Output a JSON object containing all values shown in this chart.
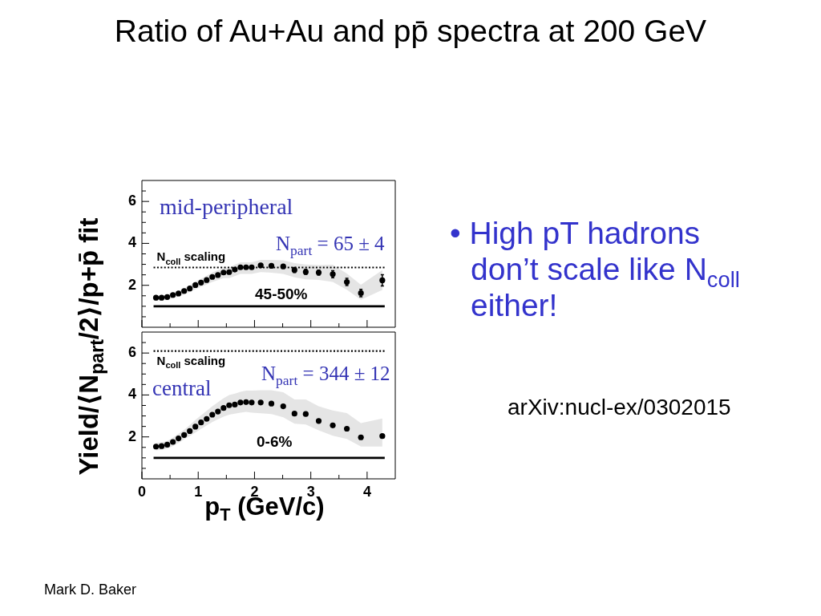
{
  "chart_data": [
    {
      "type": "scatter",
      "title": "Ratio of Au+Au and pp̄ spectra at 200 GeV",
      "x": [
        0.25,
        0.35,
        0.45,
        0.55,
        0.65,
        0.75,
        0.85,
        0.95,
        1.05,
        1.15,
        1.25,
        1.35,
        1.45,
        1.55,
        1.65,
        1.75,
        1.85,
        1.95,
        2.11,
        2.3,
        2.51,
        2.71,
        2.91,
        3.14,
        3.39,
        3.64,
        3.89,
        4.27
      ],
      "series": [
        {
          "color": "#000000",
          "values": [
            1.41,
            1.41,
            1.44,
            1.54,
            1.61,
            1.73,
            1.85,
            2.01,
            2.13,
            2.25,
            2.4,
            2.49,
            2.61,
            2.63,
            2.75,
            2.86,
            2.86,
            2.86,
            2.95,
            2.93,
            2.9,
            2.73,
            2.64,
            2.61,
            2.53,
            2.16,
            1.63,
            2.24
          ],
          "errors": [
            null,
            null,
            null,
            null,
            null,
            null,
            null,
            null,
            null,
            null,
            null,
            null,
            null,
            null,
            null,
            null,
            null,
            null,
            null,
            null,
            null,
            0.12,
            0.12,
            0.12,
            0.17,
            0.17,
            0.18,
            0.27
          ],
          "lower": [
            1.29,
            1.29,
            1.31,
            1.39,
            1.46,
            1.56,
            1.68,
            1.81,
            1.93,
            2.04,
            2.16,
            2.25,
            2.34,
            2.34,
            2.44,
            2.54,
            2.54,
            2.54,
            2.63,
            2.6,
            2.54,
            2.38,
            2.29,
            2.26,
            2.16,
            1.79,
            1.31,
            1.78
          ],
          "upper": [
            1.5,
            1.5,
            1.55,
            1.65,
            1.73,
            1.85,
            2.0,
            2.18,
            2.31,
            2.46,
            2.61,
            2.73,
            2.81,
            2.83,
            2.98,
            3.1,
            3.1,
            3.1,
            3.21,
            3.21,
            3.19,
            3.06,
            2.99,
            2.96,
            2.98,
            2.56,
            2.03,
            2.73
          ]
        }
      ],
      "xlim": [
        0,
        4.5
      ],
      "ylim": [
        0,
        7
      ],
      "xticks": [
        0,
        {
          "value": 0.5,
          "label": null
        },
        1,
        {
          "value": 1.5,
          "label": null
        },
        2,
        {
          "value": 2.5,
          "label": null
        },
        3,
        {
          "value": 3.5,
          "label": null
        },
        4
      ],
      "yticks": [
        {
          "value": 0.5,
          "label": null
        },
        {
          "value": 1,
          "label": null
        },
        {
          "value": 1.5,
          "label": null
        },
        2,
        {
          "value": 2.5,
          "label": null
        },
        {
          "value": 3,
          "label": null
        },
        {
          "value": 3.5,
          "label": null
        },
        4,
        {
          "value": 4.5,
          "label": null
        },
        {
          "value": 5,
          "label": null
        },
        {
          "value": 5.5,
          "label": null
        },
        6,
        {
          "value": 6.5,
          "label": null
        }
      ],
      "tick_labels": "y",
      "marker": "circle",
      "ref_lines": [
        {
          "axis": "y",
          "value": 2.85,
          "label": "N$_{coll}$ scaling",
          "line_style": "dotted",
          "color": "#000000"
        },
        {
          "axis": "y",
          "value": 1,
          "line_style": "solid",
          "color": "#000000"
        }
      ],
      "annotations": [
        "mid-peripheral",
        "N$_{part}$ = 65 ± 4",
        "45-50%"
      ]
    },
    {
      "type": "scatter",
      "xlabel": "p$_{T}$ (GeV/c)",
      "ylabel": "Yield/⟨N$_{part}$/2⟩/p+p̄ fit",
      "x": [
        0.25,
        0.35,
        0.45,
        0.55,
        0.65,
        0.75,
        0.85,
        0.95,
        1.05,
        1.15,
        1.25,
        1.35,
        1.45,
        1.55,
        1.65,
        1.75,
        1.85,
        1.95,
        2.11,
        2.3,
        2.51,
        2.71,
        2.91,
        3.14,
        3.39,
        3.64,
        3.89,
        4.27
      ],
      "series": [
        {
          "color": "#000000",
          "values": [
            1.54,
            1.56,
            1.63,
            1.76,
            1.93,
            2.09,
            2.28,
            2.49,
            2.69,
            2.86,
            3.06,
            3.21,
            3.38,
            3.51,
            3.54,
            3.64,
            3.66,
            3.64,
            3.64,
            3.59,
            3.46,
            3.11,
            3.09,
            2.76,
            2.55,
            2.39,
            1.98,
            2.04
          ],
          "lower": [
            1.36,
            1.39,
            1.44,
            1.56,
            1.71,
            1.88,
            2.04,
            2.21,
            2.38,
            2.54,
            2.71,
            2.84,
            2.96,
            3.06,
            3.11,
            3.16,
            3.19,
            3.16,
            3.13,
            3.09,
            2.94,
            2.63,
            2.59,
            2.31,
            2.06,
            1.9,
            1.54,
            1.54
          ],
          "upper": [
            1.71,
            1.74,
            1.81,
            1.96,
            2.15,
            2.34,
            2.56,
            2.81,
            3.03,
            3.24,
            3.46,
            3.65,
            3.84,
            4.0,
            4.06,
            4.15,
            4.21,
            4.21,
            4.23,
            4.23,
            4.13,
            3.79,
            3.79,
            3.46,
            3.26,
            3.14,
            2.66,
            2.88
          ]
        }
      ],
      "xlim": [
        0,
        4.5
      ],
      "ylim": [
        0,
        7
      ],
      "xticks": [
        0,
        {
          "value": 0.5,
          "label": null
        },
        1,
        {
          "value": 1.5,
          "label": null
        },
        2,
        {
          "value": 2.5,
          "label": null
        },
        3,
        {
          "value": 3.5,
          "label": null
        },
        4
      ],
      "yticks": [
        {
          "value": 0.5,
          "label": null
        },
        {
          "value": 1,
          "label": null
        },
        {
          "value": 1.5,
          "label": null
        },
        2,
        {
          "value": 2.5,
          "label": null
        },
        {
          "value": 3,
          "label": null
        },
        {
          "value": 3.5,
          "label": null
        },
        4,
        {
          "value": 4.5,
          "label": null
        },
        {
          "value": 5,
          "label": null
        },
        {
          "value": 5.5,
          "label": null
        },
        6,
        {
          "value": 6.5,
          "label": null
        }
      ],
      "marker": "circle",
      "ref_lines": [
        {
          "axis": "y",
          "value": 6.1,
          "label": "N$_{coll}$ scaling",
          "line_style": "dotted",
          "color": "#000000"
        },
        {
          "axis": "y",
          "value": 1,
          "line_style": "solid",
          "color": "#000000"
        }
      ],
      "annotations": [
        "central",
        "N$_{part}$ = 344 ± 12",
        "0-6%"
      ]
    },
    {
      "type": "other",
      "annotations": [
        "• High pT hadrons don’t scale like N$_{coll}$ either!",
        "arXiv:nucl-ex/0302015",
        "Mark D. Baker"
      ]
    }
  ]
}
